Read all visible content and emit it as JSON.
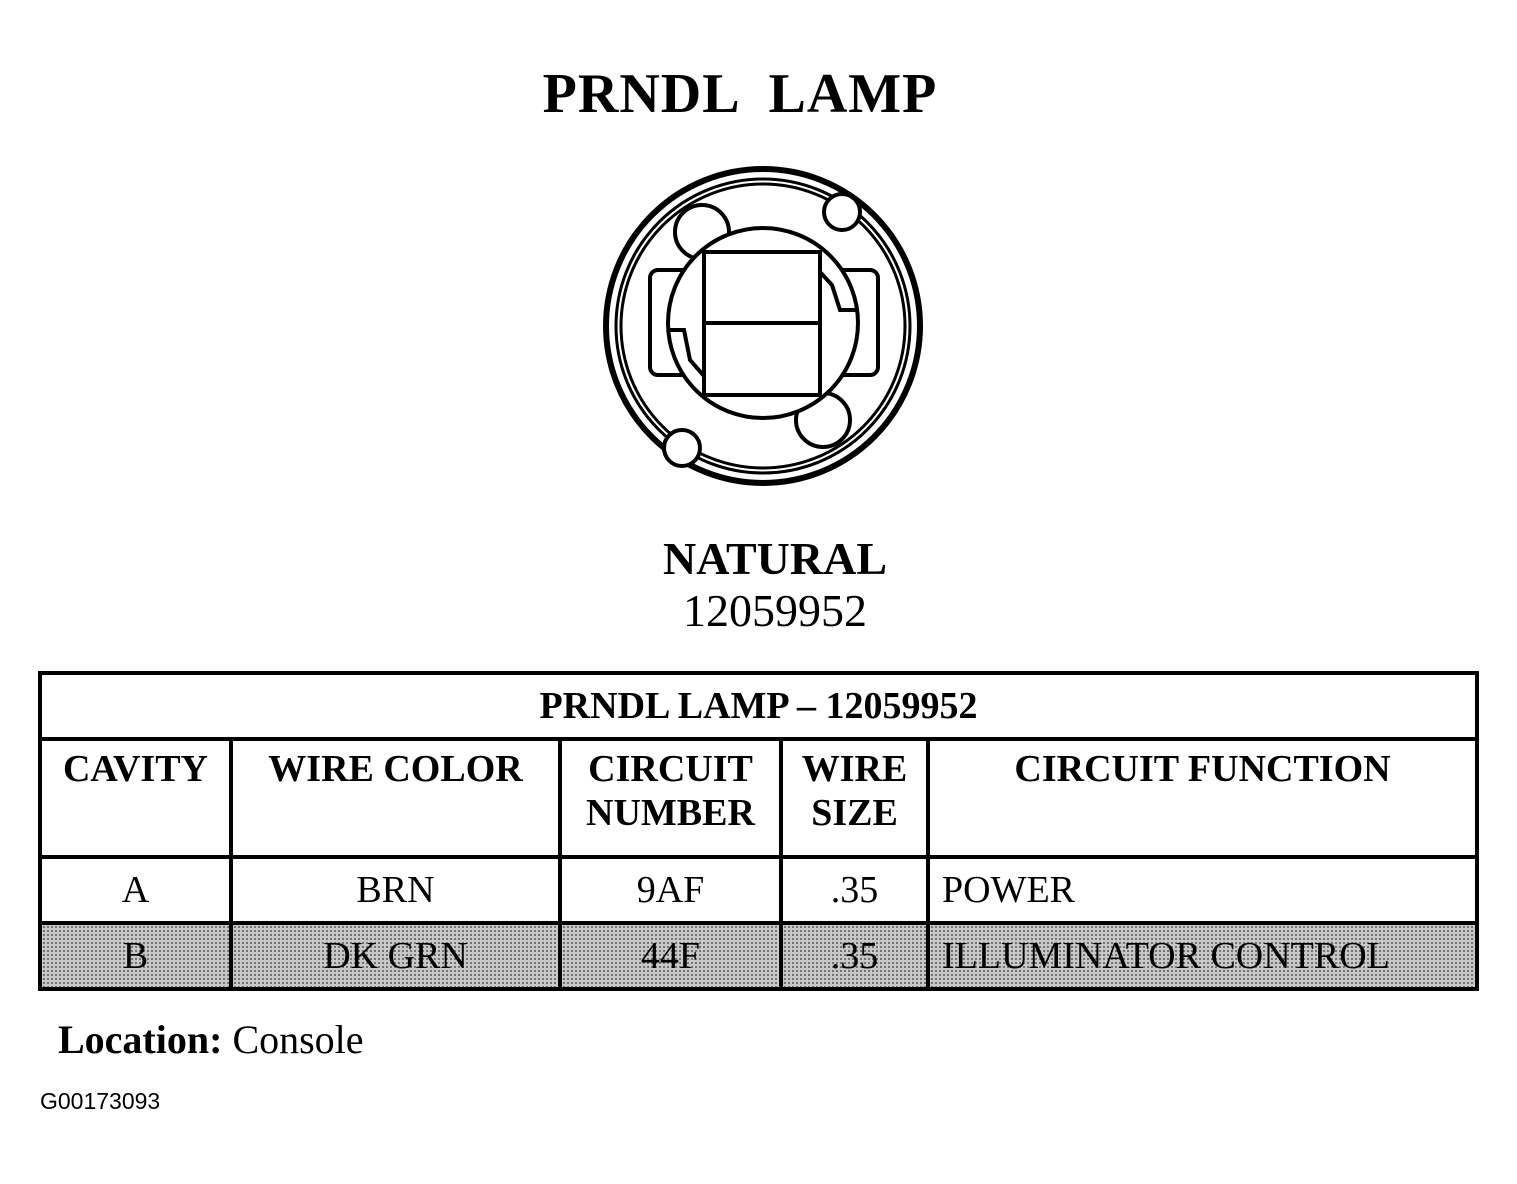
{
  "title": "PRNDL  LAMP",
  "connector": {
    "color": "NATURAL",
    "part_number": "12059952"
  },
  "table": {
    "title": "PRNDL LAMP – 12059952",
    "headers": [
      "CAVITY",
      "WIRE COLOR",
      "CIRCUIT NUMBER",
      "WIRE SIZE",
      "CIRCUIT FUNCTION"
    ],
    "header_lines": [
      [
        "CAVITY"
      ],
      [
        "WIRE COLOR"
      ],
      [
        "CIRCUIT",
        "NUMBER"
      ],
      [
        "WIRE",
        "SIZE"
      ],
      [
        "CIRCUIT FUNCTION"
      ]
    ],
    "rows": [
      {
        "cavity": "A",
        "wire_color": "BRN",
        "circuit_number": "9AF",
        "wire_size": ".35",
        "circuit_function": "POWER"
      },
      {
        "cavity": "B",
        "wire_color": "DK GRN",
        "circuit_number": "44F",
        "wire_size": ".35",
        "circuit_function": "ILLUMINATOR CONTROL"
      }
    ]
  },
  "location": {
    "label": "Location:",
    "value": "Console"
  },
  "figure_id": "G00173093"
}
